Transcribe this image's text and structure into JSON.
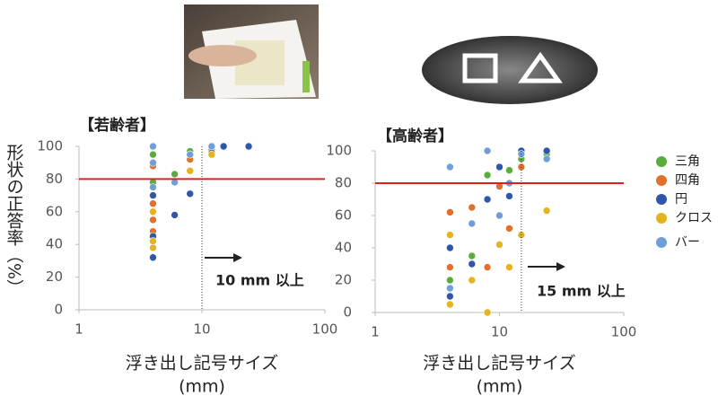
{
  "chart_data": [
    {
      "type": "scatter",
      "title": "【若齢者】",
      "ylabel": "形状の正答率（%）",
      "xlabel": "浮き出し記号サイズ",
      "xunit": "(mm)",
      "xscale": "log",
      "xlim": [
        1,
        100
      ],
      "xticks": [
        1,
        10,
        100
      ],
      "ylim": [
        0,
        100
      ],
      "yticks": [
        0,
        20,
        40,
        60,
        80,
        100
      ],
      "hline": 80,
      "hline_color": "#e02020",
      "vline": 10,
      "annotation": "10 mm 以上",
      "series": [
        {
          "color": "#5aad3c",
          "x": [
            4,
            4,
            6,
            8,
            12,
            15,
            24
          ],
          "values": [
            95,
            78,
            83,
            97,
            100,
            100,
            100
          ]
        },
        {
          "color": "#e0702a",
          "x": [
            4,
            4,
            4,
            4,
            8,
            8,
            12
          ],
          "values": [
            65,
            55,
            48,
            88,
            92,
            85,
            98
          ]
        },
        {
          "color": "#2f56a8",
          "x": [
            4,
            4,
            4,
            6,
            8,
            12,
            15,
            24
          ],
          "values": [
            32,
            45,
            70,
            58,
            71,
            96,
            100,
            100
          ]
        },
        {
          "color": "#e6b21e",
          "x": [
            4,
            4,
            4,
            8,
            12
          ],
          "values": [
            38,
            42,
            60,
            85,
            95
          ]
        },
        {
          "color": "#6f9fd8",
          "x": [
            4,
            4,
            4,
            6,
            8,
            12
          ],
          "values": [
            90,
            100,
            75,
            78,
            95,
            100
          ]
        }
      ]
    },
    {
      "type": "scatter",
      "title": "【高齢者】",
      "xlabel": "浮き出し記号サイズ",
      "xunit": "(mm)",
      "xscale": "log",
      "xlim": [
        1,
        100
      ],
      "xticks": [
        1,
        10,
        100
      ],
      "ylim": [
        0,
        100
      ],
      "yticks": [
        0,
        20,
        40,
        60,
        80,
        100
      ],
      "hline": 80,
      "hline_color": "#e02020",
      "vline": 15,
      "annotation": "15 mm 以上",
      "series": [
        {
          "name": "三角",
          "color": "#5aad3c",
          "x": [
            4,
            6,
            8,
            10,
            12,
            15,
            24
          ],
          "values": [
            20,
            35,
            85,
            90,
            88,
            95,
            98
          ]
        },
        {
          "name": "四角",
          "color": "#e0702a",
          "x": [
            4,
            4,
            6,
            8,
            10,
            12,
            15
          ],
          "values": [
            62,
            28,
            65,
            28,
            78,
            52,
            90
          ]
        },
        {
          "name": "円",
          "color": "#2f56a8",
          "x": [
            4,
            4,
            6,
            8,
            10,
            12,
            15,
            24
          ],
          "values": [
            10,
            40,
            30,
            70,
            90,
            72,
            100,
            100
          ]
        },
        {
          "name": "クロス",
          "color": "#e6b21e",
          "x": [
            4,
            4,
            6,
            8,
            10,
            12,
            15,
            24
          ],
          "values": [
            5,
            48,
            20,
            0,
            42,
            28,
            48,
            63
          ]
        },
        {
          "name": "バー",
          "color": "#6f9fd8",
          "x": [
            4,
            4,
            6,
            8,
            10,
            12,
            15,
            24
          ],
          "values": [
            90,
            15,
            55,
            100,
            60,
            80,
            98,
            95
          ]
        }
      ]
    }
  ]
}
